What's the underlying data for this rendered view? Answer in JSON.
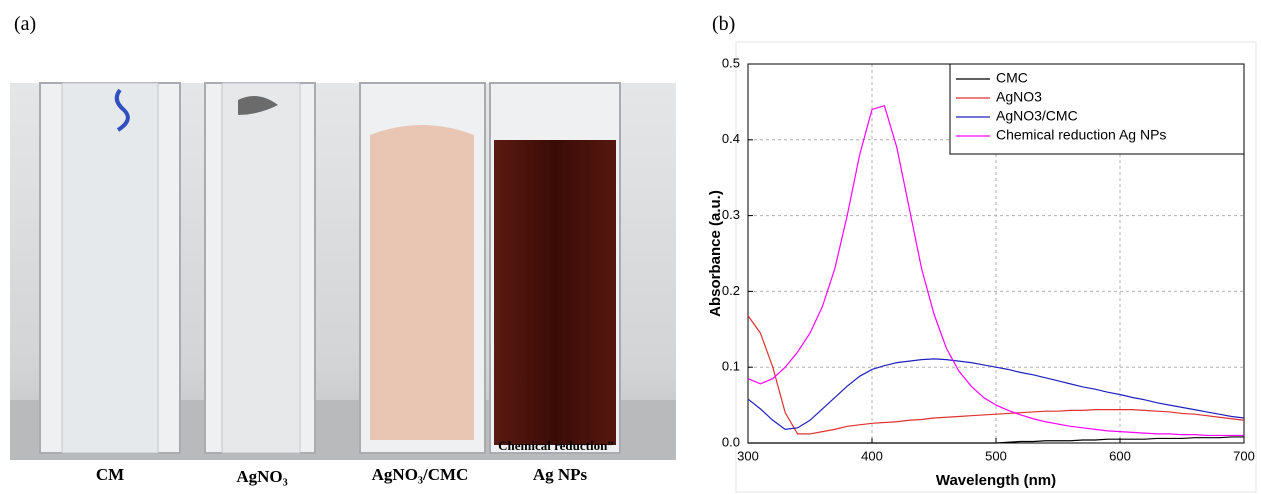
{
  "figure": {
    "panel_a_label": "(a)",
    "panel_b_label": "(b)",
    "captions": [
      "CM",
      "AgNO₃",
      "AgNO₃/CMC",
      "Chemical reduction”",
      "Ag NPs"
    ]
  },
  "chart_data": {
    "type": "line",
    "xlabel": "Wavelength (nm)",
    "ylabel": "Absorbance (a.u.)",
    "xlim": [
      300,
      700
    ],
    "ylim": [
      0,
      0.5
    ],
    "xticks": [
      300,
      400,
      500,
      600,
      700
    ],
    "yticks": [
      {
        "value": 0,
        "label": "0.0"
      },
      0.1,
      0.2,
      0.3,
      0.4,
      0.5
    ],
    "grid": true,
    "legend": "upper right",
    "x": [
      300,
      310,
      320,
      330,
      340,
      350,
      360,
      370,
      380,
      390,
      400,
      410,
      420,
      430,
      440,
      450,
      460,
      470,
      480,
      490,
      500,
      510,
      520,
      530,
      540,
      550,
      560,
      570,
      580,
      590,
      600,
      610,
      620,
      630,
      640,
      650,
      660,
      670,
      680,
      690,
      700
    ],
    "series": [
      {
        "name": "CMC",
        "color": "#000000",
        "values": [
          0,
          0,
          0,
          0,
          0,
          0,
          0,
          0,
          0,
          0,
          0,
          0,
          0,
          0,
          0,
          0,
          0,
          0,
          0,
          0,
          0,
          0.001,
          0.002,
          0.002,
          0.003,
          0.003,
          0.003,
          0.004,
          0.004,
          0.005,
          0.005,
          0.005,
          0.005,
          0.006,
          0.006,
          0.006,
          0.007,
          0.007,
          0.007,
          0.008,
          0.008
        ]
      },
      {
        "name": "AgNO3",
        "color": "#e03030",
        "values": [
          0.168,
          0.145,
          0.1,
          0.04,
          0.012,
          0.012,
          0.015,
          0.018,
          0.022,
          0.024,
          0.026,
          0.027,
          0.028,
          0.03,
          0.031,
          0.033,
          0.034,
          0.035,
          0.036,
          0.037,
          0.038,
          0.039,
          0.04,
          0.041,
          0.042,
          0.042,
          0.043,
          0.043,
          0.044,
          0.044,
          0.044,
          0.044,
          0.043,
          0.042,
          0.041,
          0.039,
          0.038,
          0.036,
          0.034,
          0.032,
          0.03
        ]
      },
      {
        "name": "AgNO3/CMC",
        "color": "#2020c0",
        "values": [
          0.058,
          0.045,
          0.03,
          0.018,
          0.02,
          0.03,
          0.045,
          0.06,
          0.075,
          0.088,
          0.097,
          0.102,
          0.106,
          0.108,
          0.11,
          0.111,
          0.11,
          0.108,
          0.106,
          0.103,
          0.1,
          0.097,
          0.093,
          0.09,
          0.086,
          0.082,
          0.078,
          0.074,
          0.071,
          0.067,
          0.064,
          0.06,
          0.057,
          0.053,
          0.05,
          0.047,
          0.044,
          0.041,
          0.038,
          0.035,
          0.033
        ]
      },
      {
        "name": "Chemical reduction Ag NPs",
        "color": "#ff00ff",
        "values": [
          0.085,
          0.078,
          0.085,
          0.1,
          0.12,
          0.145,
          0.18,
          0.23,
          0.3,
          0.38,
          0.44,
          0.445,
          0.39,
          0.31,
          0.23,
          0.17,
          0.125,
          0.095,
          0.075,
          0.06,
          0.05,
          0.043,
          0.037,
          0.032,
          0.028,
          0.025,
          0.022,
          0.02,
          0.018,
          0.016,
          0.015,
          0.014,
          0.013,
          0.012,
          0.012,
          0.011,
          0.011,
          0.01,
          0.01,
          0.01,
          0.01
        ]
      }
    ]
  }
}
